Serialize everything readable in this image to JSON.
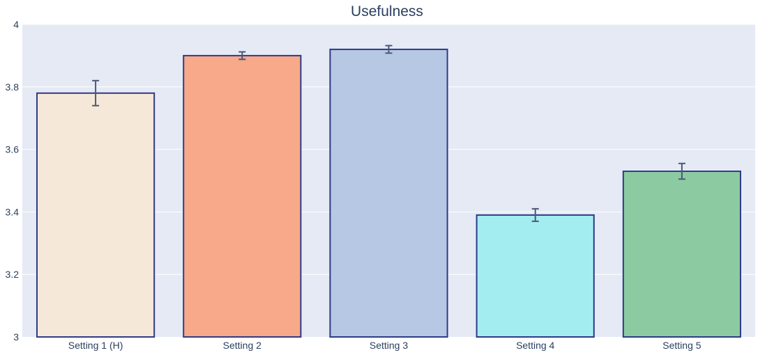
{
  "chart_data": {
    "type": "bar",
    "title": "Usefulness",
    "xlabel": "",
    "ylabel": "",
    "categories": [
      "Setting 1 (H)",
      "Setting 2",
      "Setting 3",
      "Setting 4",
      "Setting 5"
    ],
    "values": [
      3.78,
      3.9,
      3.92,
      3.39,
      3.53
    ],
    "error_plus": [
      0.04,
      0.012,
      0.012,
      0.02,
      0.025
    ],
    "error_minus": [
      0.04,
      0.012,
      0.012,
      0.02,
      0.025
    ],
    "bar_colors": [
      "#F6E8D8",
      "#F8A989",
      "#B6C8E3",
      "#A3EDF1",
      "#8CCBA2"
    ],
    "ylim": [
      3,
      4
    ],
    "y_ticks": [
      3,
      3.2,
      3.4,
      3.6,
      3.8,
      4
    ],
    "y_tick_labels": [
      "3",
      "3.2",
      "3.4",
      "3.6",
      "3.8",
      "4"
    ],
    "grid": true,
    "legend": "none",
    "colors": {
      "plot_background": "#E5EAF5",
      "gridline": "#FFFFFF",
      "bar_outline": "#2E3A87",
      "error_bar": "#4A5878",
      "text": "#2A3F5F"
    }
  }
}
